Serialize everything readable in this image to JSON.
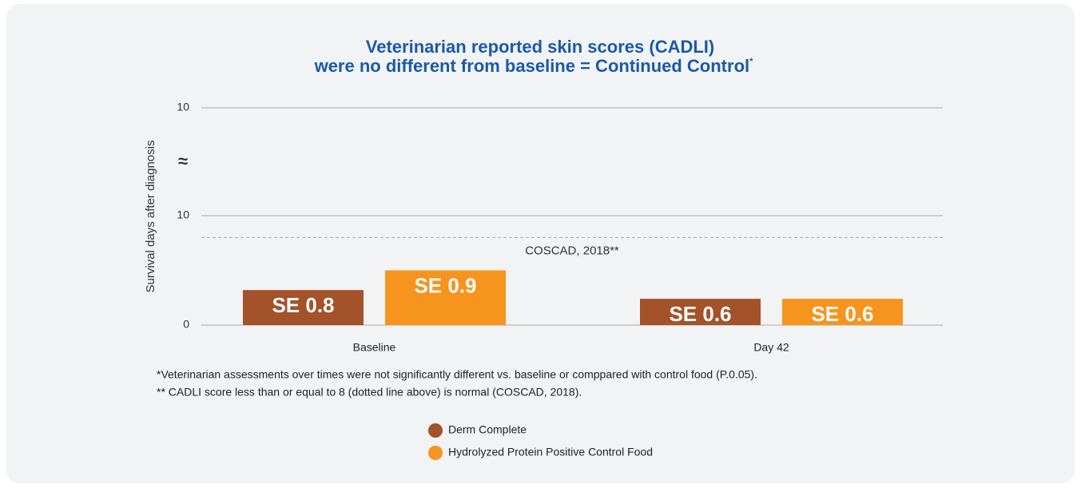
{
  "chart_data": {
    "type": "bar",
    "title_lines": [
      "Veterinarian reported skin scores (CADLI)",
      "were no different from baseline = Continued Control"
    ],
    "title_mark": "*",
    "y_label": "Survival days after diagnosis",
    "categories": [
      "Baseline",
      "Day 42"
    ],
    "series": [
      {
        "name": "Derm Complete",
        "color": "#a4522a",
        "values": [
          3.2,
          2.4
        ],
        "se_labels": [
          "SE 0.8",
          "SE 0.6"
        ]
      },
      {
        "name": "Hydrolyzed Protein Positive Control Food",
        "color": "#f7941d",
        "values": [
          5,
          2.4
        ],
        "se_labels": [
          "SE 0.9",
          "SE 0.6"
        ]
      }
    ],
    "ylim": [
      0,
      10
    ],
    "yticks": [
      0,
      10
    ],
    "upper_yticks": [
      10
    ],
    "axis_break_label": "≈",
    "reference_line": {
      "value": 8,
      "label": "COSCAD, 2018**"
    },
    "grid": true,
    "footnotes": [
      "*Veterinarian assessments over times were not significantly different vs. baseline or comppared with control food (P.0.05).",
      "** CADLI score less than or equal to 8 (dotted line above) is normal (COSCAD, 2018)."
    ]
  }
}
